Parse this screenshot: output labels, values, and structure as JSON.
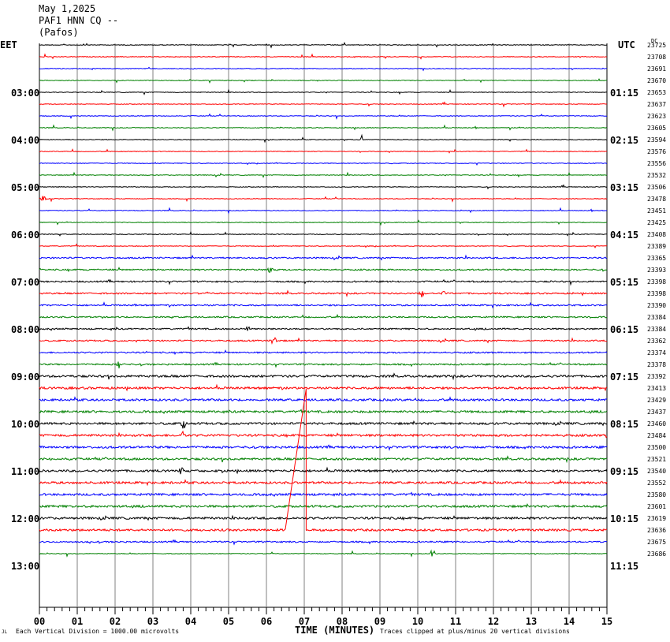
{
  "header": {
    "date": "May 1,2025",
    "station": "PAF1 HNN CQ --",
    "location": "(Pafos)"
  },
  "left_axis_label": "EET",
  "right_axis_label": "UTC",
  "dc_label": "DC",
  "footer": {
    "scale_note": "Each Vertical Division = 1000.00 microvolts",
    "xlabel": "TIME (MINUTES)",
    "clip_note": "Traces clipped at plus/minus 20 vertical divisions",
    "corner_mark": "JL"
  },
  "chart_data": {
    "type": "line",
    "title": "PAF1 HNN CQ --",
    "xlabel": "TIME (MINUTES)",
    "xlim": [
      0,
      15
    ],
    "x_ticks": [
      "00",
      "01",
      "02",
      "03",
      "04",
      "05",
      "06",
      "07",
      "08",
      "09",
      "10",
      "11",
      "12",
      "13",
      "14",
      "15"
    ],
    "trace_interval_minutes": 15,
    "trace_colors": [
      "#000000",
      "#ff0000",
      "#0000ff",
      "#008000"
    ],
    "left_time_labels": [
      {
        "label": "03:00",
        "trace": 4
      },
      {
        "label": "04:00",
        "trace": 8
      },
      {
        "label": "05:00",
        "trace": 12
      },
      {
        "label": "06:00",
        "trace": 16
      },
      {
        "label": "07:00",
        "trace": 20
      },
      {
        "label": "08:00",
        "trace": 24
      },
      {
        "label": "09:00",
        "trace": 28
      },
      {
        "label": "10:00",
        "trace": 32
      },
      {
        "label": "11:00",
        "trace": 36
      },
      {
        "label": "12:00",
        "trace": 40
      },
      {
        "label": "13:00",
        "trace": 44
      }
    ],
    "right_time_labels": [
      {
        "label": "01:15",
        "trace": 4
      },
      {
        "label": "02:15",
        "trace": 8
      },
      {
        "label": "03:15",
        "trace": 12
      },
      {
        "label": "04:15",
        "trace": 16
      },
      {
        "label": "05:15",
        "trace": 20
      },
      {
        "label": "06:15",
        "trace": 24
      },
      {
        "label": "07:15",
        "trace": 28
      },
      {
        "label": "08:15",
        "trace": 32
      },
      {
        "label": "09:15",
        "trace": 36
      },
      {
        "label": "10:15",
        "trace": 40
      },
      {
        "label": "11:15",
        "trace": 44
      }
    ],
    "dc_offsets": [
      23725,
      23708,
      23691,
      23670,
      23653,
      23637,
      23623,
      23605,
      23594,
      23576,
      23556,
      23532,
      23506,
      23478,
      23451,
      23425,
      23408,
      23389,
      23365,
      23393,
      23398,
      23398,
      23390,
      23384,
      23384,
      23362,
      23374,
      23378,
      23392,
      23413,
      23429,
      23437,
      23460,
      23484,
      23500,
      23521,
      23540,
      23552,
      23580,
      23601,
      23619,
      23636,
      23675,
      23686
    ],
    "noise_level": [
      1,
      1,
      1,
      1,
      1,
      1,
      1,
      1,
      1,
      1,
      1,
      1,
      1,
      1,
      1,
      1,
      1,
      1,
      2,
      2,
      2,
      2,
      2,
      2,
      2,
      2,
      2,
      2,
      3,
      3,
      3,
      3,
      3,
      3,
      3,
      3,
      3,
      3,
      3,
      3,
      3,
      3,
      2,
      1
    ],
    "events": [
      {
        "trace": 8,
        "minute": 8.5,
        "amplitude": 8
      },
      {
        "trace": 13,
        "minute": 0.1,
        "amplitude": 6
      },
      {
        "trace": 19,
        "minute": 6.1,
        "amplitude": 7
      },
      {
        "trace": 21,
        "minute": 10.1,
        "amplitude": 6
      },
      {
        "trace": 21,
        "minute": 10.7,
        "amplitude": 5
      },
      {
        "trace": 24,
        "minute": 5.5,
        "amplitude": 5
      },
      {
        "trace": 25,
        "minute": 6.2,
        "amplitude": 7
      },
      {
        "trace": 27,
        "minute": 2.1,
        "amplitude": 7
      },
      {
        "trace": 32,
        "minute": 3.8,
        "amplitude": 9
      },
      {
        "trace": 33,
        "minute": 3.8,
        "amplitude": 7
      },
      {
        "trace": 33,
        "minute": 15.0,
        "amplitude": 6
      },
      {
        "trace": 36,
        "minute": 3.75,
        "amplitude": 8
      },
      {
        "trace": 41,
        "minute": 14.2,
        "amplitude": 8
      },
      {
        "trace": 43,
        "minute": 10.4,
        "amplitude": 6
      }
    ],
    "clipped_segment": {
      "trace": 41,
      "points": [
        [
          0,
          0
        ],
        [
          6.5,
          0
        ],
        [
          7.05,
          -179
        ],
        [
          7.05,
          0
        ],
        [
          15,
          0
        ]
      ]
    }
  }
}
